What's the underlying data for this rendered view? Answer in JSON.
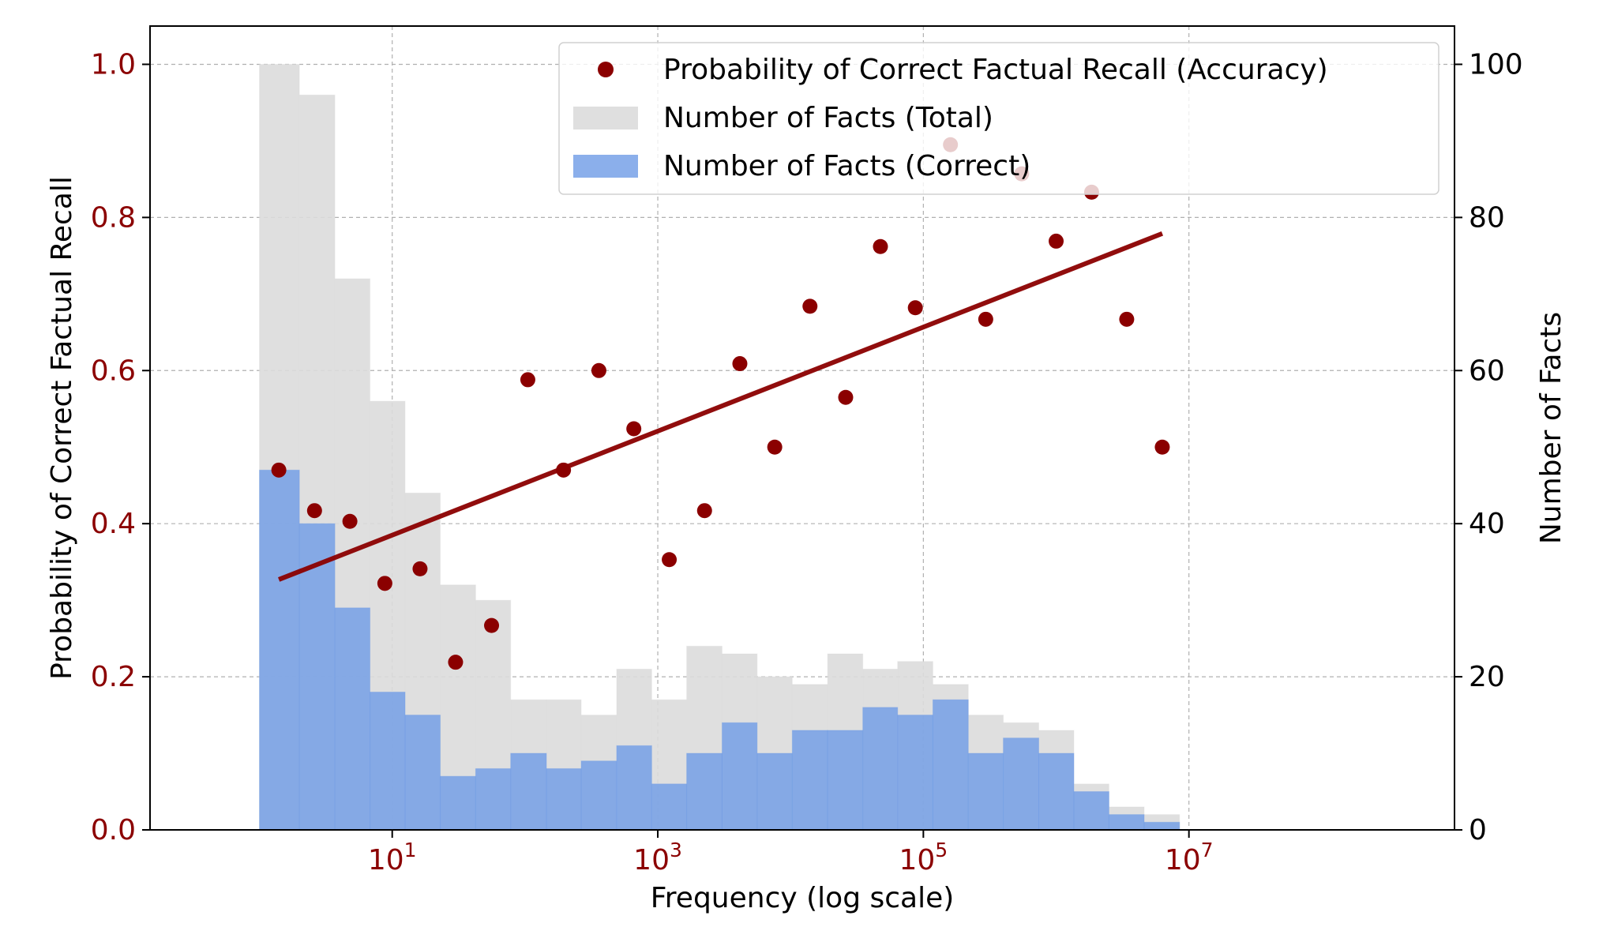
{
  "colors": {
    "accuracy": "#8b0000",
    "total": "#dcdcdc",
    "correct": "#6e9be6",
    "left_axis_text": "#8b0000",
    "right_axis_text": "#000000",
    "grid": "#b0b0b0"
  },
  "chart_data": {
    "type": "bar+scatter+line",
    "xlabel": "Frequency (log scale)",
    "ylabel_left": "Probability of Correct Factual Recall",
    "ylabel_right": "Number of Facts",
    "x_scale": "log",
    "xlim": [
      0.15,
      1000000000
    ],
    "ylim_left": [
      0,
      1.05
    ],
    "ylim_right": [
      0,
      105
    ],
    "x_ticks": [
      {
        "value": 10,
        "base": "10",
        "exp": "1"
      },
      {
        "value": 1000,
        "base": "10",
        "exp": "3"
      },
      {
        "value": 100000,
        "base": "10",
        "exp": "5"
      },
      {
        "value": 10000000,
        "base": "10",
        "exp": "7"
      }
    ],
    "y_ticks_left": [
      "0.0",
      "0.2",
      "0.4",
      "0.6",
      "0.8",
      "1.0"
    ],
    "y_ticks_right": [
      "0",
      "20",
      "40",
      "60",
      "80",
      "100"
    ],
    "grid": true,
    "legend_position": "top-right",
    "legend": [
      {
        "key": "accuracy",
        "label": "Probability of Correct Factual Recall (Accuracy)"
      },
      {
        "key": "total",
        "label": "Number of Facts (Total)"
      },
      {
        "key": "correct",
        "label": "Number of Facts (Correct)"
      }
    ],
    "bin_edges": [
      1,
      2,
      3.7,
      6.8,
      12.5,
      23,
      42.5,
      78,
      145,
      265,
      490,
      900,
      1650,
      3050,
      5600,
      10300,
      19000,
      35000,
      64000,
      118000,
      218000,
      400000,
      740000,
      1360000,
      2500000,
      4600000,
      8500000
    ],
    "series": [
      {
        "name": "Number of Facts (Total)",
        "key": "total",
        "values": [
          100,
          96,
          72,
          56,
          44,
          32,
          30,
          17,
          17,
          15,
          21,
          17,
          24,
          23,
          20,
          19,
          23,
          21,
          22,
          19,
          15,
          14,
          13,
          6,
          3,
          2
        ]
      },
      {
        "name": "Number of Facts (Correct)",
        "key": "correct",
        "values": [
          47,
          40,
          29,
          18,
          15,
          7,
          8,
          10,
          8,
          9,
          11,
          6,
          10,
          14,
          10,
          13,
          13,
          16,
          15,
          17,
          10,
          12,
          10,
          5,
          2,
          1
        ]
      },
      {
        "name": "Probability of Correct Factual Recall (Accuracy)",
        "key": "accuracy",
        "x": [
          1.4,
          2.6,
          4.8,
          8.8,
          16.2,
          30,
          56,
          105,
          195,
          360,
          660,
          1220,
          2250,
          4150,
          7600,
          14000,
          26000,
          47500,
          87000,
          160000,
          295000,
          550000,
          1000000,
          1850000,
          3400000,
          6300000
        ],
        "y": [
          0.47,
          0.417,
          0.403,
          0.322,
          0.341,
          0.219,
          0.267,
          0.588,
          0.47,
          0.6,
          0.524,
          0.353,
          0.417,
          0.609,
          0.5,
          0.684,
          0.565,
          0.762,
          0.682,
          0.895,
          0.667,
          0.857,
          0.769,
          0.833,
          0.667,
          0.5
        ]
      }
    ],
    "trendline": {
      "key": "accuracy",
      "x": [
        1.4,
        6300000
      ],
      "y": [
        0.327,
        0.779
      ]
    }
  }
}
